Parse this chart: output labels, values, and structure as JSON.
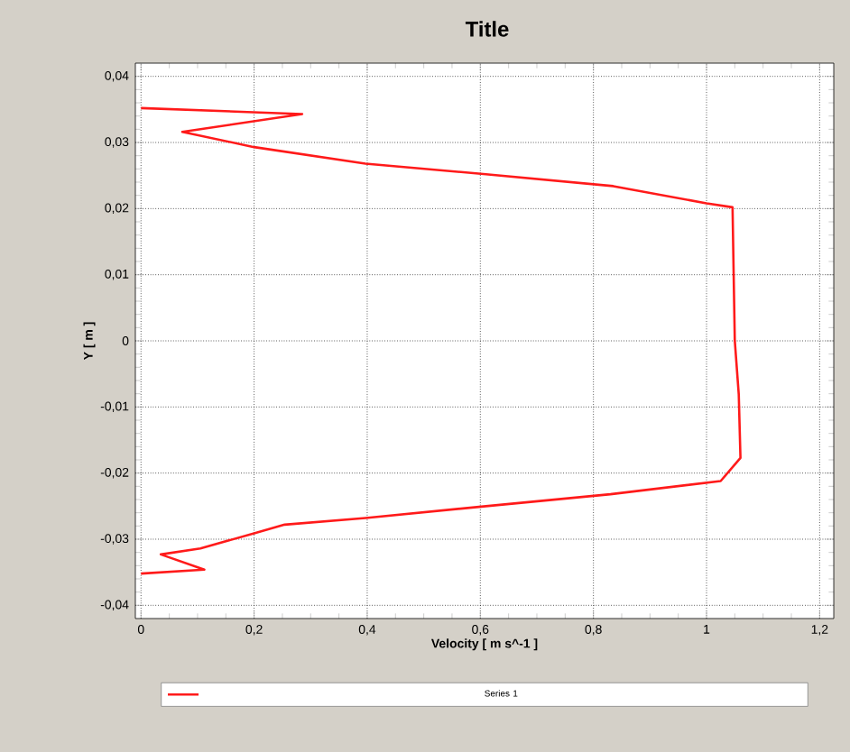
{
  "chart_data": {
    "type": "line",
    "title": "Title",
    "xlabel": "Velocity [ m s^-1 ]",
    "ylabel": "Y [ m ]",
    "xlim": [
      -0.01,
      1.225
    ],
    "ylim": [
      -0.042,
      0.042
    ],
    "xticks": [
      {
        "value": 0,
        "label": "0"
      },
      {
        "value": 0.2,
        "label": "0,2"
      },
      {
        "value": 0.4,
        "label": "0,4"
      },
      {
        "value": 0.6,
        "label": "0,6"
      },
      {
        "value": 0.8,
        "label": "0,8"
      },
      {
        "value": 1,
        "label": "1"
      },
      {
        "value": 1.2,
        "label": "1,2"
      }
    ],
    "yticks": [
      {
        "value": -0.04,
        "label": "-0,04"
      },
      {
        "value": -0.03,
        "label": "-0,03"
      },
      {
        "value": -0.02,
        "label": "-0,02"
      },
      {
        "value": -0.01,
        "label": "-0,01"
      },
      {
        "value": 0,
        "label": "0"
      },
      {
        "value": 0.01,
        "label": "0,01"
      },
      {
        "value": 0.02,
        "label": "0,02"
      },
      {
        "value": 0.03,
        "label": "0,03"
      },
      {
        "value": 0.04,
        "label": "0,04"
      }
    ],
    "grid": true,
    "legend": "bottom",
    "marker": "none",
    "line_style": "solid",
    "series": [
      {
        "name": "Series 1",
        "color": "#ff1a1a",
        "x": [
          0,
          0.285,
          0.073,
          0.2,
          0.397,
          0.61,
          0.835,
          1.0,
          1.046,
          1.048,
          1.05,
          1.057,
          1.06,
          1.025,
          0.83,
          0.61,
          0.397,
          0.254,
          0.2,
          0.105,
          0.035,
          0.112,
          0
        ],
        "values": [
          0.0352,
          0.0343,
          0.0316,
          0.0293,
          0.0268,
          0.0252,
          0.0234,
          0.0208,
          0.0202,
          0.01,
          0,
          -0.0081,
          -0.0177,
          -0.0212,
          -0.0232,
          -0.025,
          -0.0268,
          -0.0278,
          -0.0291,
          -0.0314,
          -0.0323,
          -0.0346,
          -0.0352
        ]
      }
    ]
  }
}
